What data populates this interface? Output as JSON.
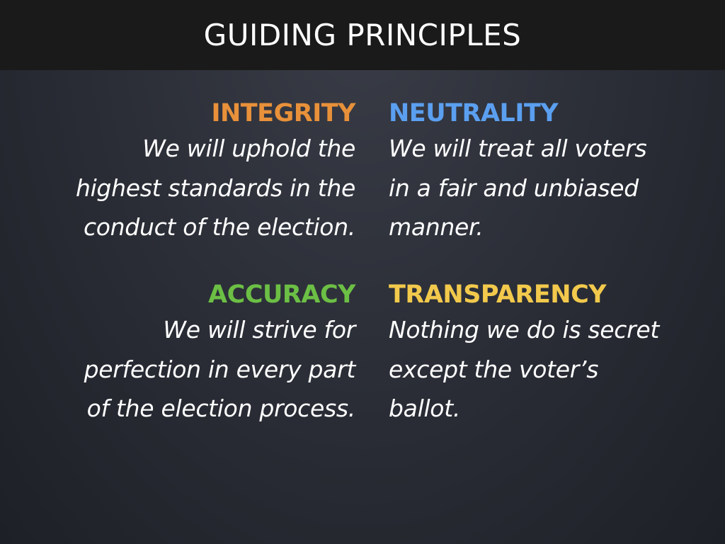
{
  "header": {
    "title": "GUIDING PRINCIPLES"
  },
  "principles": [
    {
      "heading": "INTEGRITY",
      "color": "#e8913a",
      "description": "We will uphold the\nhighest standards in the\nconduct of the election."
    },
    {
      "heading": "NEUTRALITY",
      "color": "#5b9ff0",
      "description": "We will treat all voters\nin a fair and unbiased\nmanner."
    },
    {
      "heading": "ACCURACY",
      "color": "#6cbf45",
      "description": "We will strive for\nperfection in every part\nof the election process."
    },
    {
      "heading": "TRANSPARENCY",
      "color": "#f2c94c",
      "description": "Nothing we do is secret\nexcept the voter’s\nballot."
    }
  ]
}
